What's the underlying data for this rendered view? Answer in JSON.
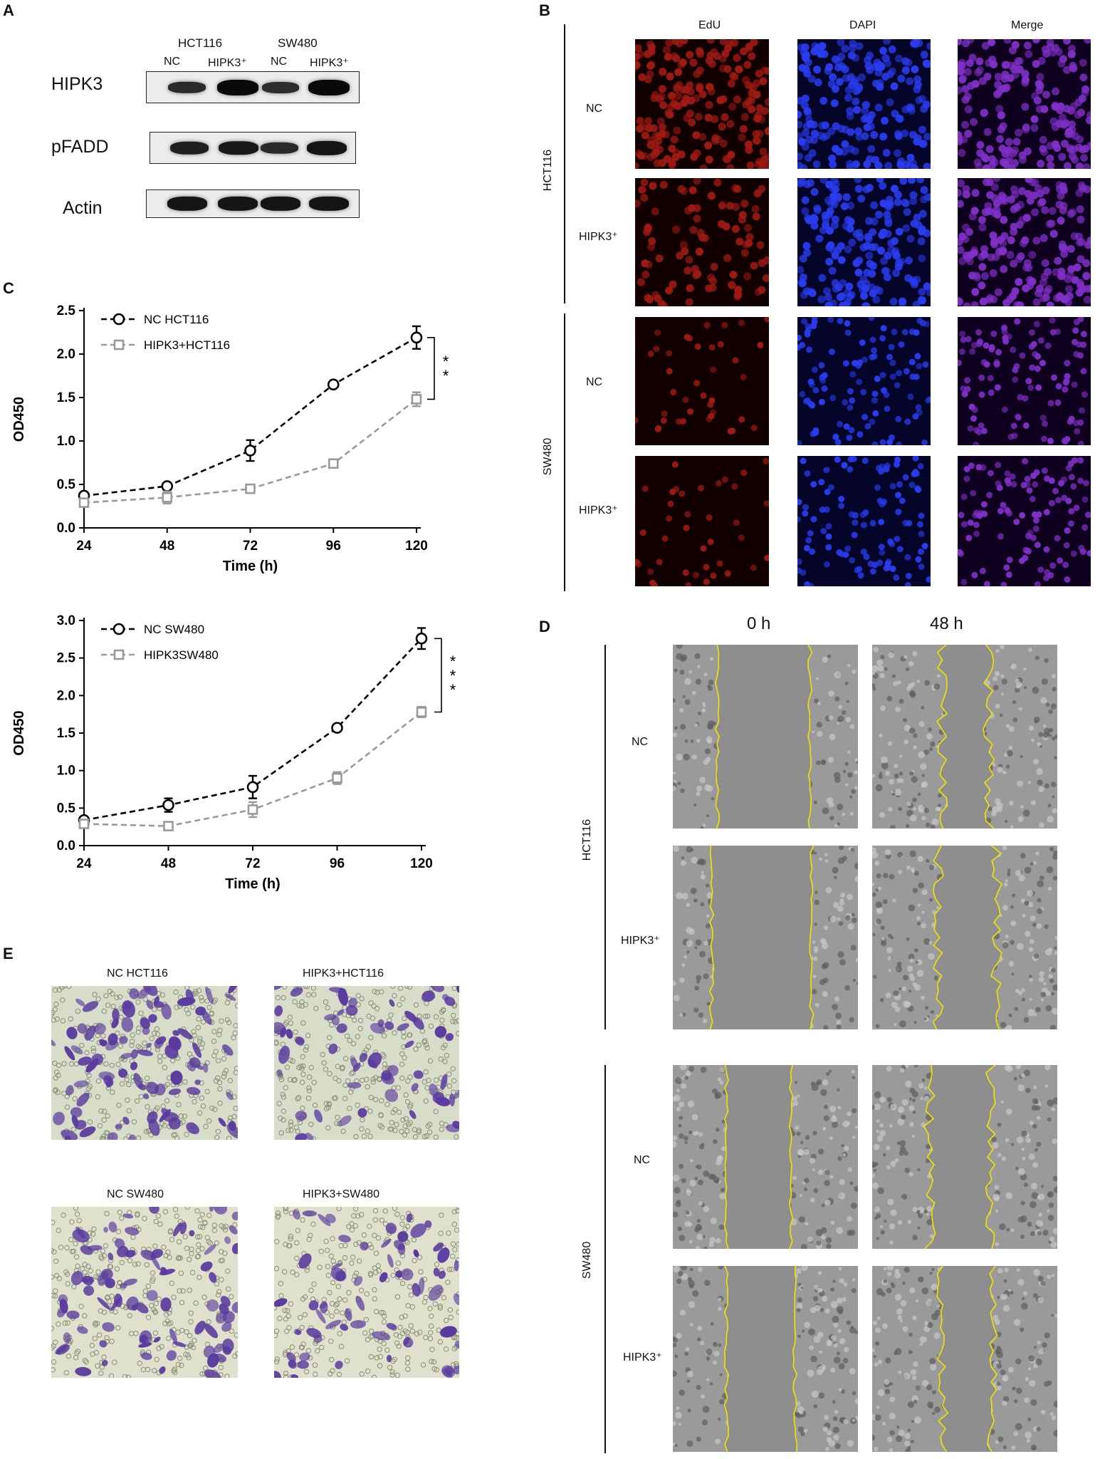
{
  "panels": {
    "a": "A",
    "b": "B",
    "c": "C",
    "d": "D",
    "e": "E"
  },
  "western": {
    "cell_lines": [
      "HCT116",
      "SW480"
    ],
    "lanes": [
      "NC",
      "HIPK3⁺",
      "NC",
      "HIPK3⁺"
    ],
    "rows": [
      {
        "label": "HIPK3",
        "intensity": [
          0.55,
          1.0,
          0.5,
          1.0
        ]
      },
      {
        "label": "pFADD",
        "intensity": [
          0.7,
          0.8,
          0.55,
          0.85
        ]
      },
      {
        "label": "Actin",
        "intensity": [
          0.85,
          0.85,
          0.85,
          0.85
        ]
      }
    ]
  },
  "edu": {
    "columns": [
      "EdU",
      "DAPI",
      "Merge"
    ],
    "groups": [
      {
        "cell_line": "HCT116",
        "rows": [
          "NC",
          "HIPK3⁺"
        ]
      },
      {
        "cell_line": "SW480",
        "rows": [
          "NC",
          "HIPK3⁺"
        ]
      }
    ]
  },
  "cck8": {
    "charts": [
      {
        "ylabel": "OD450",
        "xlabel": "Time (h)",
        "series_labels": [
          "NC HCT116",
          "HIPK3+HCT116"
        ],
        "significance": "**"
      },
      {
        "ylabel": "OD450",
        "xlabel": "Time (h)",
        "series_labels": [
          "NC SW480",
          "HIPK3SW480"
        ],
        "significance": "***"
      }
    ]
  },
  "chart_data": [
    {
      "type": "line",
      "x": [
        24,
        48,
        72,
        96,
        120
      ],
      "xticks": [
        "24",
        "48",
        "72",
        "96",
        "120"
      ],
      "yticks": [
        "0.0",
        "0.5",
        "1.0",
        "1.5",
        "2.0",
        "2.5"
      ],
      "ylim": [
        0,
        2.5
      ],
      "xlabel": "Time (h)",
      "ylabel": "OD450",
      "legend": "top-left",
      "series": [
        {
          "name": "NC HCT116",
          "values": [
            0.37,
            0.48,
            0.89,
            1.65,
            2.19
          ],
          "err": [
            0.04,
            0.04,
            0.12,
            0.03,
            0.13
          ],
          "color": "#000000",
          "marker": "circle"
        },
        {
          "name": "HIPK3+HCT116",
          "values": [
            0.29,
            0.35,
            0.45,
            0.74,
            1.48
          ],
          "err": [
            0.04,
            0.07,
            0.03,
            0.04,
            0.08
          ],
          "color": "#9a9a9a",
          "marker": "square"
        }
      ]
    },
    {
      "type": "line",
      "x": [
        24,
        48,
        72,
        96,
        120
      ],
      "xticks": [
        "24",
        "48",
        "72",
        "96",
        "120"
      ],
      "yticks": [
        "0.0",
        "0.5",
        "1.0",
        "1.5",
        "2.0",
        "2.5",
        "3.0"
      ],
      "ylim": [
        0,
        3.0
      ],
      "xlabel": "Time (h)",
      "ylabel": "OD450",
      "legend": "top-left",
      "series": [
        {
          "name": "NC SW480",
          "values": [
            0.34,
            0.54,
            0.78,
            1.57,
            2.76
          ],
          "err": [
            0.03,
            0.09,
            0.15,
            0.03,
            0.14
          ],
          "color": "#000000",
          "marker": "circle"
        },
        {
          "name": "HIPK3SW480",
          "values": [
            0.29,
            0.26,
            0.48,
            0.9,
            1.78
          ],
          "err": [
            0.03,
            0.03,
            0.1,
            0.08,
            0.07
          ],
          "color": "#9a9a9a",
          "marker": "square"
        }
      ]
    }
  ],
  "wound": {
    "columns": [
      "0 h",
      "48 h"
    ],
    "groups": [
      {
        "cell_line": "HCT116",
        "rows": [
          "NC",
          "HIPK3⁺"
        ]
      },
      {
        "cell_line": "SW480",
        "rows": [
          "NC",
          "HIPK3⁺"
        ]
      }
    ]
  },
  "transwell": {
    "labels": [
      "NC HCT116",
      "HIPK3+HCT116",
      "NC SW480",
      "HIPK3+SW480"
    ]
  },
  "colors": {
    "edu_red": "#7a0a0a",
    "dapi_blue": "#1a2fd8",
    "wound_yellow": "#f2e200",
    "crystal_violet": "#5a3a9e"
  }
}
